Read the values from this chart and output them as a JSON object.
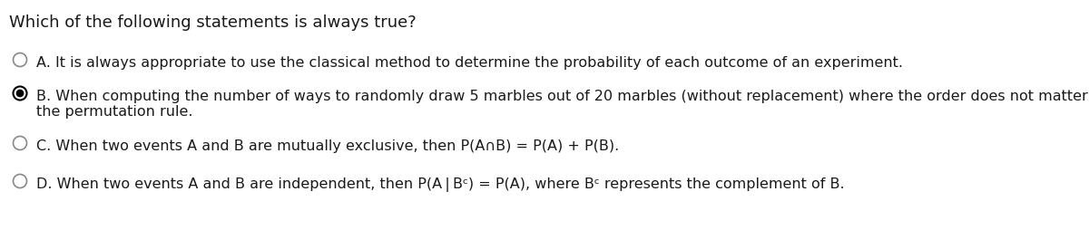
{
  "title": "Which of the following statements is always true?",
  "options": [
    {
      "label": "A",
      "text": "A. It is always appropriate to use the classical method to determine the probability of each outcome of an experiment.",
      "selected": false,
      "multiline": false,
      "line2": ""
    },
    {
      "label": "B",
      "text": "B. When computing the number of ways to randomly draw 5 marbles out of 20 marbles (without replacement) where the order does not matter, we should use",
      "selected": true,
      "multiline": true,
      "line2": "the permutation rule."
    },
    {
      "label": "C",
      "text": "C. When two events A and B are mutually exclusive, then P(A∩B) = P(A) + P(B).",
      "selected": false,
      "multiline": false,
      "line2": ""
    },
    {
      "label": "D",
      "text": "D. When two events A and B are independent, then P(A | Bᶜ) = P(A), where Bᶜ represents the complement of B.",
      "selected": false,
      "multiline": false,
      "line2": ""
    }
  ],
  "background_color": "#ffffff",
  "text_color": "#1a1a1a",
  "title_fontsize": 13,
  "option_fontsize": 11.5,
  "circle_edge_color": "#888888",
  "circle_edge_selected": "#000000",
  "selected_fill": "#000000",
  "unselected_fill": "#ffffff"
}
